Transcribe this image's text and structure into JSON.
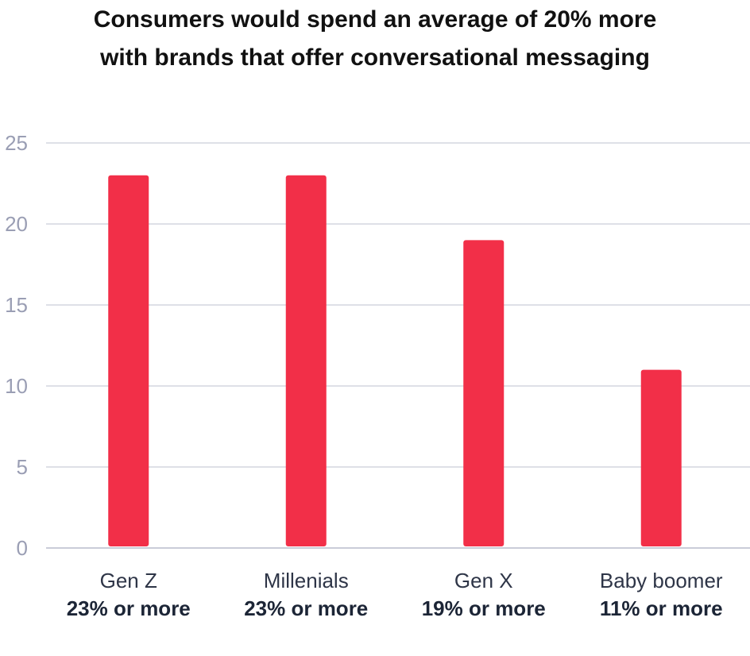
{
  "chart_data": {
    "type": "bar",
    "title": [
      "Consumers would spend an average of 20% more",
      "with brands that offer conversational messaging"
    ],
    "categories": [
      "Gen Z",
      "Millenials",
      "Gen X",
      "Baby boomer"
    ],
    "values": [
      23,
      23,
      19,
      11
    ],
    "value_labels": [
      "23% or more",
      "23% or more",
      "19% or more",
      "11% or more"
    ],
    "color": "#f22f48",
    "ylim": [
      0,
      25
    ],
    "yticks": [
      0,
      5,
      10,
      15,
      20,
      25
    ],
    "grid": true
  }
}
